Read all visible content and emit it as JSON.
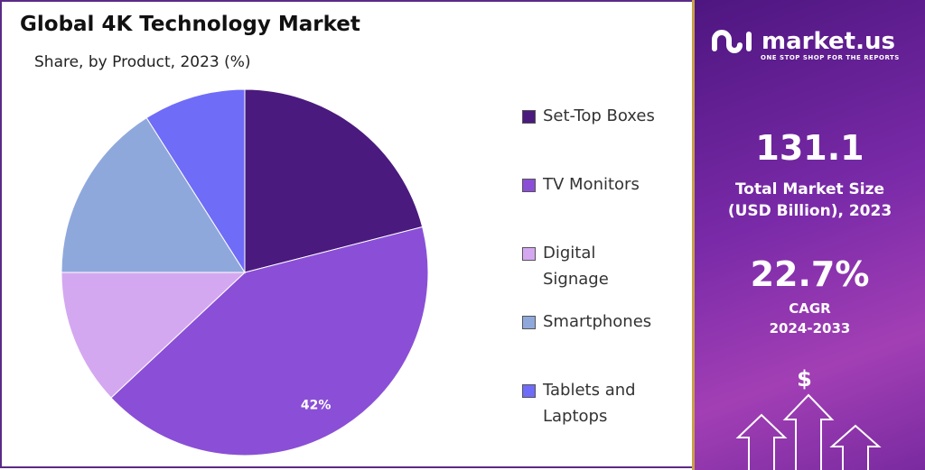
{
  "chart_data": {
    "type": "pie",
    "title": "Global 4K Technology Market",
    "subtitle": "Share, by Product, 2023 (%)",
    "categories": [
      "Set-Top Boxes",
      "TV Monitors",
      "Digital Signage",
      "Smartphones",
      "Tablets and Laptops"
    ],
    "values": [
      21,
      42,
      12,
      16,
      9
    ],
    "colors": [
      "#4a1a7e",
      "#8a4fd6",
      "#d4a8f0",
      "#8fa8dc",
      "#6f6cf8"
    ],
    "data_labels": {
      "1": "42%"
    },
    "legend_placement": "right"
  },
  "panel": {
    "brand": "market.us",
    "tagline": "ONE STOP SHOP FOR THE REPORTS",
    "market_size": "131.1",
    "market_size_label_1": "Total Market Size",
    "market_size_label_2": "(USD Billion), 2023",
    "cagr": "22.7%",
    "cagr_label_1": "CAGR",
    "cagr_label_2": "2024-2033",
    "dollar": "$"
  }
}
